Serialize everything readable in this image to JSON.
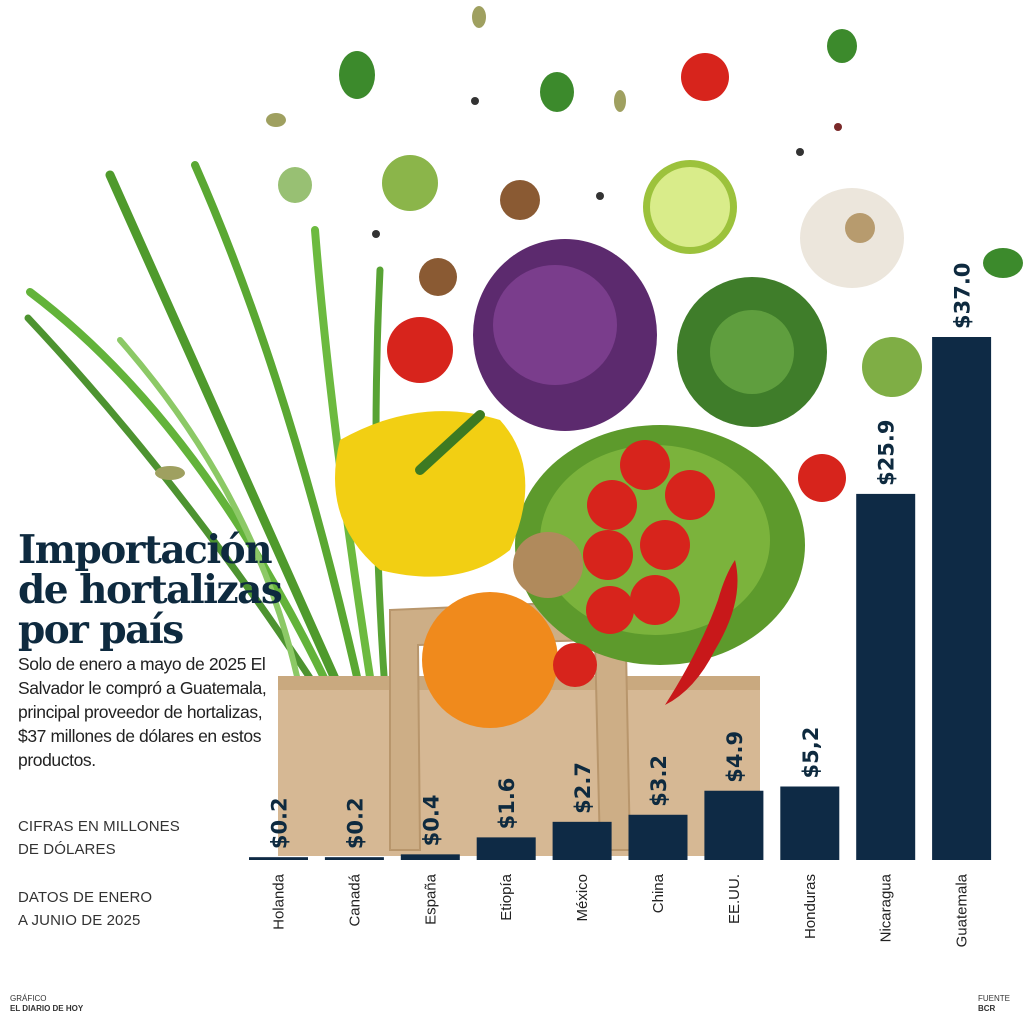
{
  "header": {
    "title_lines": [
      "Importación",
      "de hortalizas",
      "por país"
    ],
    "description": "Solo de enero a mayo de 2025 El Salvador le compró a Guatemala, principal proveedor de hortalizas, $37 millones de dólares en estos productos.",
    "units_lines": [
      "CIFRAS EN MILLONES",
      "DE DÓLARES"
    ],
    "period_lines": [
      "DATOS DE ENERO",
      "A JUNIO DE 2025"
    ]
  },
  "footer": {
    "credit_label": "GRÁFICO",
    "credit_name": "EL DIARIO DE HOY",
    "source_label": "FUENTE",
    "source_name": "BCR"
  },
  "chart_data": {
    "type": "bar",
    "title": "Importación de hortalizas por país",
    "categories": [
      "Holanda",
      "Canadá",
      "España",
      "Etiopía",
      "México",
      "China",
      "EE.UU.",
      "Honduras",
      "Nicaragua",
      "Guatemala"
    ],
    "values": [
      0.2,
      0.2,
      0.4,
      1.6,
      2.7,
      3.2,
      4.9,
      5.2,
      25.9,
      37.0
    ],
    "value_labels": [
      "$0.2",
      "$0.2",
      "$0.4",
      "$1.6",
      "$2.7",
      "$3.2",
      "$4.9",
      "$5,2",
      "$25.9",
      "$37.0"
    ],
    "unit": "millones de dólares",
    "ylim": [
      0,
      37
    ],
    "grid": false,
    "legend": "none",
    "bar_color": "#0e2a45"
  },
  "colors": {
    "bar": "#0e2a45",
    "title": "#0e2a3f",
    "background": "#ffffff"
  }
}
